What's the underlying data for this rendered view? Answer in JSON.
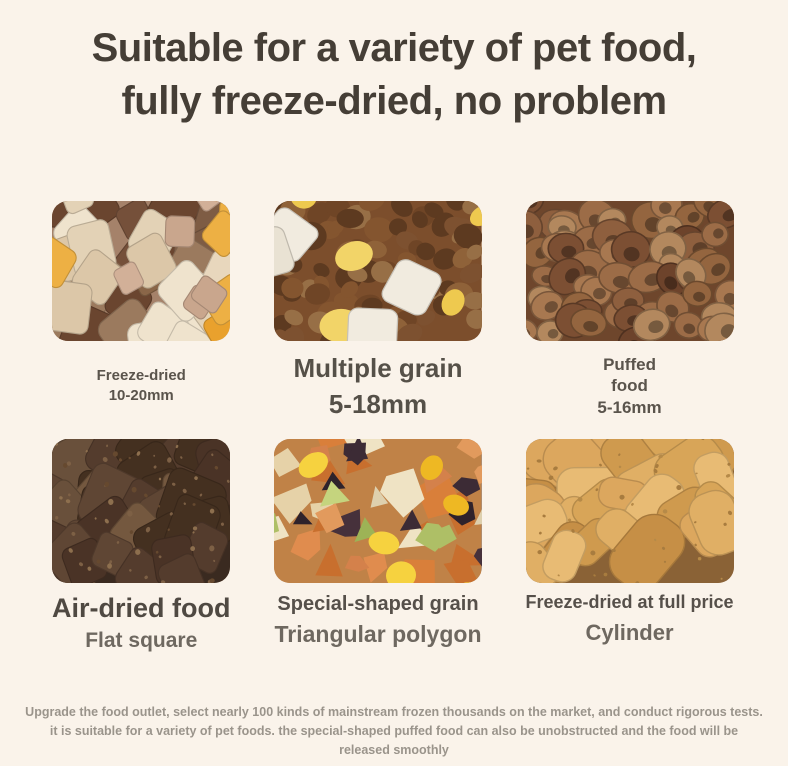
{
  "page": {
    "background": "#faf3ea",
    "title_color": "#453e36",
    "title_line1": "Suitable for a variety of pet food,",
    "title_line2": "fully freeze-dried, no problem"
  },
  "tiles": [
    {
      "id": "freeze-dried",
      "photo_name": "freeze-dried-cubes-photo",
      "caption_lines": [
        "Freeze-dried",
        "10-20mm"
      ],
      "image": {
        "base": "#a5826a",
        "seed": 7,
        "layers": [
          {
            "shape": "cube",
            "colors": [
              "#8a6648",
              "#75503a",
              "#9b7a5e",
              "#6a452f",
              "#7e5c44"
            ],
            "count": 22,
            "min": 30,
            "max": 58
          },
          {
            "shape": "cube",
            "colors": [
              "#e8d7bd",
              "#efe3cd",
              "#dcc7a8",
              "#e3d2b6"
            ],
            "count": 16,
            "min": 34,
            "max": 62
          },
          {
            "shape": "cube",
            "colors": [
              "#edb044",
              "#e9a12d"
            ],
            "count": 6,
            "min": 26,
            "max": 44
          },
          {
            "shape": "cube",
            "colors": [
              "#c9a68d",
              "#d2b098"
            ],
            "count": 5,
            "min": 24,
            "max": 40
          }
        ]
      }
    },
    {
      "id": "multiple-grain",
      "photo_name": "multiple-grain-kibble-photo",
      "caption_lines": [
        "Multiple grain",
        "5-18mm"
      ],
      "image": {
        "base": "#7c4e2c",
        "seed": 11,
        "layers": [
          {
            "shape": "ellipse",
            "colors": [
              "#6f4526",
              "#7d5130",
              "#8f6239",
              "#5d3a20",
              "#976f46",
              "#84552f"
            ],
            "count": 85,
            "min": 16,
            "max": 30
          },
          {
            "shape": "ellipse",
            "colors": [
              "#f2d468",
              "#eec94f"
            ],
            "count": 5,
            "min": 26,
            "max": 42
          },
          {
            "shape": "cube",
            "colors": [
              "#f1ebdf",
              "#e9e2d3"
            ],
            "count": 4,
            "min": 36,
            "max": 52
          }
        ]
      }
    },
    {
      "id": "puffed-food",
      "photo_name": "puffed-food-photo",
      "caption_lines": [
        "Puffed",
        "food",
        "5-16mm"
      ],
      "image": {
        "base": "#6e462c",
        "seed": 23,
        "layers": [
          {
            "shape": "disc",
            "colors": [
              "#8e5f3e",
              "#9c6c47",
              "#7c4f33",
              "#a87850",
              "#6d432b",
              "#b3885e",
              "#94653f"
            ],
            "count": 60,
            "min": 24,
            "max": 40
          }
        ]
      }
    },
    {
      "id": "air-dried",
      "photo_name": "air-dried-food-photo",
      "caption_lines": [
        "Air-dried food",
        "Flat square"
      ],
      "image": {
        "base": "#3a2a20",
        "seed": 31,
        "layers": [
          {
            "shape": "cube",
            "colors": [
              "#543c2d",
              "#4a3326",
              "#5f4634",
              "#69503b",
              "#443020",
              "#74583f"
            ],
            "count": 34,
            "min": 36,
            "max": 66
          },
          {
            "shape": "ellipse",
            "colors": [
              "#7d6045",
              "#8d6f4e",
              "#66492f"
            ],
            "count": 70,
            "min": 2,
            "max": 6
          }
        ]
      }
    },
    {
      "id": "special-shaped",
      "photo_name": "special-shaped-grain-photo",
      "caption_lines": [
        "Special-shaped grain",
        "Triangular polygon"
      ],
      "image": {
        "base": "#c08247",
        "seed": 41,
        "layers": [
          {
            "shape": "poly",
            "colors": [
              "#d97f3a",
              "#e08c4e",
              "#c86f2e",
              "#d2803f"
            ],
            "count": 14,
            "min": 30,
            "max": 58
          },
          {
            "shape": "poly",
            "colors": [
              "#e6d2a8",
              "#efe3c4",
              "#ded0ae"
            ],
            "count": 9,
            "min": 28,
            "max": 52
          },
          {
            "shape": "poly",
            "colors": [
              "#3c2b35",
              "#2e222b",
              "#46313b"
            ],
            "count": 9,
            "min": 20,
            "max": 42
          },
          {
            "shape": "poly",
            "colors": [
              "#aebf66",
              "#c5d47e",
              "#9db356"
            ],
            "count": 5,
            "min": 26,
            "max": 48
          },
          {
            "shape": "poly",
            "colors": [
              "#e29a5d",
              "#d4814b"
            ],
            "count": 6,
            "min": 24,
            "max": 42
          },
          {
            "shape": "ellipse",
            "colors": [
              "#f3c62e",
              "#eeb823",
              "#f6d23f"
            ],
            "count": 6,
            "min": 24,
            "max": 40
          }
        ]
      }
    },
    {
      "id": "cylinder",
      "photo_name": "freeze-dried-cylinder-photo",
      "caption_lines": [
        "Freeze-dried at full price",
        "Cylinder"
      ],
      "image": {
        "base": "#8a6236",
        "seed": 53,
        "layers": [
          {
            "shape": "capsule",
            "colors": [
              "#e0af65",
              "#d8a558",
              "#cf9a4e",
              "#e8bb74",
              "#c68f46",
              "#dca75e"
            ],
            "count": 30,
            "min": 44,
            "max": 78
          },
          {
            "shape": "ellipse",
            "colors": [
              "#a87c3f",
              "#b68a48"
            ],
            "count": 40,
            "min": 2,
            "max": 5
          }
        ]
      }
    }
  ],
  "footer": {
    "color": "#9a948b",
    "lines": [
      "Upgrade the food outlet, select nearly 100 kinds of mainstream frozen thousands on the market, and conduct rigorous tests.",
      "it is suitable for a variety of pet foods. the special-shaped puffed food can also be unobstructed and the food will be",
      "released smoothly"
    ]
  }
}
